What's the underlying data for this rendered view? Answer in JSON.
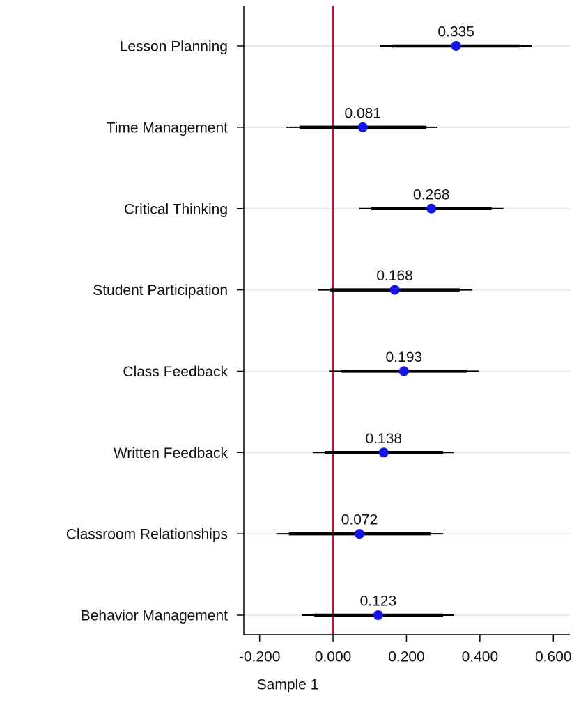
{
  "chart_data": {
    "type": "coefplot",
    "categories": [
      "Lesson Planning",
      "Time Management",
      "Critical Thinking",
      "Student Participation",
      "Class Feedback",
      "Written Feedback",
      "Classroom Relationships",
      "Behavior Management"
    ],
    "series": [
      {
        "color": "#1515e6",
        "values": [
          0.335,
          0.081,
          0.268,
          0.168,
          0.193,
          0.138,
          0.072,
          0.123
        ],
        "ci_low": [
          0.127,
          -0.127,
          0.072,
          -0.042,
          -0.011,
          -0.055,
          -0.154,
          -0.085
        ],
        "ci_high": [
          0.541,
          0.285,
          0.464,
          0.379,
          0.398,
          0.33,
          0.3,
          0.33
        ],
        "ci90_low": [
          0.161,
          -0.091,
          0.104,
          -0.008,
          0.023,
          -0.023,
          -0.12,
          -0.051
        ],
        "ci90_high": [
          0.509,
          0.254,
          0.432,
          0.345,
          0.364,
          0.3,
          0.266,
          0.3
        ]
      }
    ],
    "xlabel": "Sample 1",
    "xlim": [
      -0.243,
      0.645
    ],
    "xticks": [
      {
        "value": -0.2,
        "label": "-0.200"
      },
      {
        "value": 0,
        "label": "0.000"
      },
      {
        "value": 0.2,
        "label": "0.200"
      },
      {
        "value": 0.4,
        "label": "0.400"
      },
      {
        "value": 0.6,
        "label": "0.600"
      }
    ],
    "reference_line": 0,
    "reference_color": "#c0143c",
    "grid": true
  }
}
